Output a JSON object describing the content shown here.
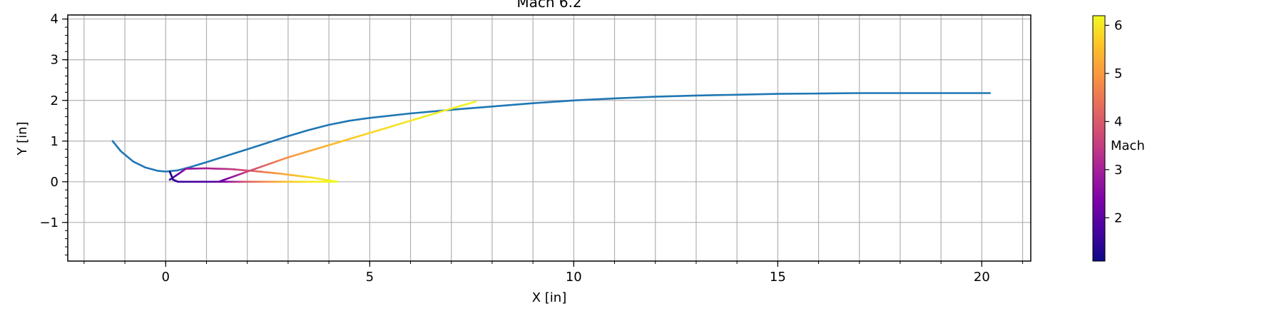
{
  "chart_data": {
    "type": "line",
    "title": "Mach 6.2",
    "xlabel": "X [in]",
    "ylabel": "Y [in]",
    "xlim": [
      -2.4,
      21.2
    ],
    "ylim": [
      -1.95,
      4.1
    ],
    "xticks": [
      0,
      5,
      10,
      15,
      20
    ],
    "yticks": [
      -1,
      0,
      1,
      2,
      3,
      4
    ],
    "grid": true,
    "legend": null,
    "colorbar": {
      "label": "Mach",
      "colormap": "plasma",
      "range": [
        1.1,
        6.2
      ],
      "ticks": [
        2,
        3,
        4,
        5,
        6
      ]
    },
    "series": [
      {
        "color": "#1f77b4",
        "x": [
          -1.3,
          -1.1,
          -0.8,
          -0.5,
          -0.2,
          0.0,
          0.3,
          0.6,
          1.0,
          1.5,
          2.0,
          2.5,
          3.0,
          3.5,
          4.0,
          4.5,
          5.0,
          6.0,
          7.0,
          8.0,
          9.0,
          10.0,
          11.0,
          12.0,
          13.0,
          14.0,
          15.0,
          16.0,
          17.0,
          18.0,
          19.0,
          20.2
        ],
        "y": [
          1.0,
          0.75,
          0.5,
          0.35,
          0.27,
          0.25,
          0.28,
          0.36,
          0.48,
          0.64,
          0.8,
          0.96,
          1.12,
          1.27,
          1.4,
          1.5,
          1.57,
          1.68,
          1.77,
          1.85,
          1.93,
          2.0,
          2.05,
          2.09,
          2.12,
          2.14,
          2.16,
          2.17,
          2.18,
          2.18,
          2.18,
          2.18
        ]
      },
      {
        "colored_by": "Mach",
        "x": [
          0.1,
          0.18,
          0.3,
          1.3
        ],
        "y": [
          0.25,
          0.05,
          0.0,
          0.0
        ],
        "mach": [
          1.2,
          1.3,
          1.6,
          1.9
        ]
      },
      {
        "colored_by": "Mach",
        "x": [
          0.1,
          0.5,
          1.0,
          1.6,
          2.2,
          2.8,
          3.6,
          4.2
        ],
        "y": [
          0.05,
          0.32,
          0.33,
          0.31,
          0.26,
          0.2,
          0.1,
          0.0
        ],
        "mach": [
          1.3,
          2.8,
          3.0,
          3.4,
          4.2,
          5.1,
          5.9,
          6.2
        ]
      },
      {
        "colored_by": "Mach",
        "x": [
          1.3,
          2.0,
          2.6,
          3.0,
          3.5,
          4.2
        ],
        "y": [
          0.0,
          0.0,
          0.0,
          0.0,
          0.0,
          0.0
        ],
        "mach": [
          1.9,
          4.0,
          5.0,
          5.6,
          6.0,
          6.2
        ]
      },
      {
        "colored_by": "Mach",
        "x": [
          1.3,
          2.0,
          3.0,
          4.0,
          5.0,
          6.0,
          7.0,
          7.6
        ],
        "y": [
          0.0,
          0.25,
          0.6,
          0.9,
          1.2,
          1.5,
          1.8,
          1.97
        ],
        "mach": [
          1.9,
          3.6,
          4.9,
          5.4,
          5.8,
          6.0,
          6.1,
          6.2
        ]
      }
    ]
  }
}
